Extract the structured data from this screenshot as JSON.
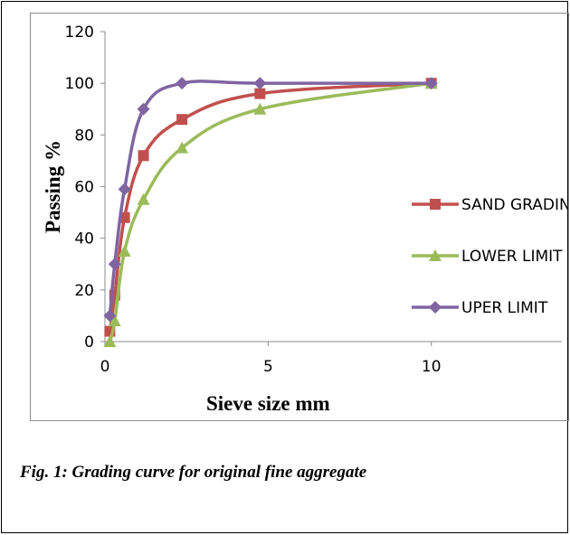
{
  "chart_data": {
    "type": "line",
    "xlabel": "Sieve size mm",
    "ylabel": "Passing %",
    "xlim": [
      0,
      14
    ],
    "ylim": [
      0,
      120
    ],
    "xticks": [
      0,
      5,
      10
    ],
    "yticks": [
      0,
      20,
      40,
      60,
      80,
      100,
      120
    ],
    "grid": false,
    "legend_position": "right",
    "series": [
      {
        "name": "SAND GRADING",
        "color": "#c0504d",
        "marker": "square",
        "x": [
          0.15,
          0.3,
          0.6,
          1.18,
          2.36,
          4.75,
          10
        ],
        "y": [
          4,
          18,
          48,
          72,
          86,
          96,
          100
        ]
      },
      {
        "name": "LOWER LIMIT",
        "color": "#9bbb59",
        "marker": "triangle",
        "x": [
          0.15,
          0.3,
          0.6,
          1.18,
          2.36,
          4.75,
          10
        ],
        "y": [
          0,
          8,
          35,
          55,
          75,
          90,
          100
        ]
      },
      {
        "name": "UPER LIMIT",
        "color": "#8064a2",
        "marker": "diamond",
        "x": [
          0.15,
          0.3,
          0.6,
          1.18,
          2.36,
          4.75,
          10
        ],
        "y": [
          10,
          30,
          59,
          90,
          100,
          100,
          100
        ]
      }
    ]
  },
  "caption": "Fig. 1: Grading curve for original fine aggregate"
}
